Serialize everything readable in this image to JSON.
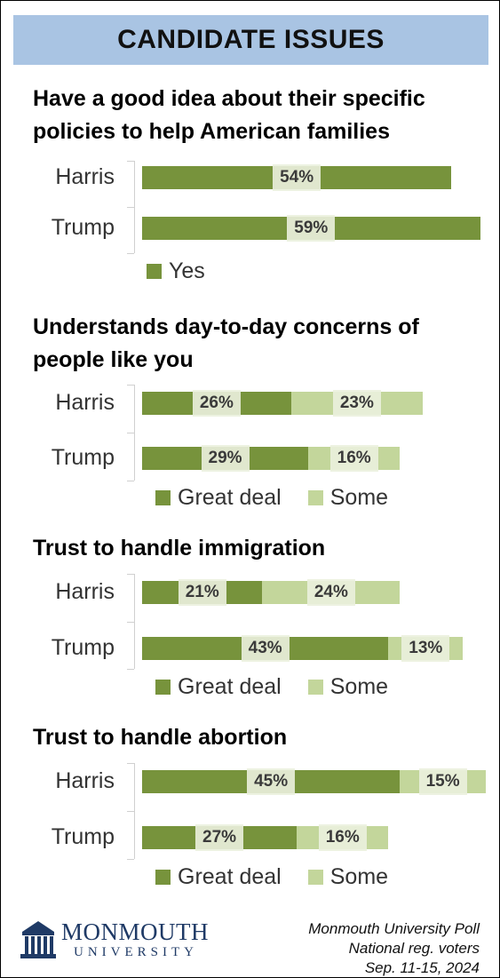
{
  "header": {
    "title": "CANDIDATE ISSUES"
  },
  "footer": {
    "logo_main": "MONMOUTH",
    "logo_sub": "UNIVERSITY",
    "source_line1": "Monmouth University Poll",
    "source_line2": "National reg. voters",
    "source_line3": "Sep. 11-15, 2024"
  },
  "colors": {
    "dark": "#77933c",
    "light": "#c3d69b",
    "header": "#a9c4e3"
  },
  "chart_data": [
    {
      "type": "bar",
      "orientation": "horizontal",
      "stacked": false,
      "title": "Have a good idea about their specific policies to help American families",
      "categories": [
        "Harris",
        "Trump"
      ],
      "series": [
        {
          "name": "Yes",
          "values": [
            54,
            59
          ],
          "labels": [
            "54%",
            "59%"
          ]
        }
      ],
      "unit": "%",
      "legend": [
        "Yes"
      ],
      "legend_position": "bottom"
    },
    {
      "type": "bar",
      "orientation": "horizontal",
      "stacked": true,
      "title": "Understands day-to-day concerns of people like you",
      "categories": [
        "Harris",
        "Trump"
      ],
      "series": [
        {
          "name": "Great deal",
          "values": [
            26,
            29
          ],
          "labels": [
            "26%",
            "29%"
          ]
        },
        {
          "name": "Some",
          "values": [
            23,
            16
          ],
          "labels": [
            "23%",
            "16%"
          ]
        }
      ],
      "unit": "%",
      "legend": [
        "Great deal",
        "Some"
      ],
      "legend_position": "bottom"
    },
    {
      "type": "bar",
      "orientation": "horizontal",
      "stacked": true,
      "title": "Trust to handle immigration",
      "categories": [
        "Harris",
        "Trump"
      ],
      "series": [
        {
          "name": "Great deal",
          "values": [
            21,
            43
          ],
          "labels": [
            "21%",
            "43%"
          ]
        },
        {
          "name": "Some",
          "values": [
            24,
            13
          ],
          "labels": [
            "24%",
            "13%"
          ]
        }
      ],
      "unit": "%",
      "legend": [
        "Great deal",
        "Some"
      ],
      "legend_position": "bottom"
    },
    {
      "type": "bar",
      "orientation": "horizontal",
      "stacked": true,
      "title": "Trust to handle abortion",
      "categories": [
        "Harris",
        "Trump"
      ],
      "series": [
        {
          "name": "Great deal",
          "values": [
            45,
            27
          ],
          "labels": [
            "45%",
            "27%"
          ]
        },
        {
          "name": "Some",
          "values": [
            15,
            16
          ],
          "labels": [
            "15%",
            "16%"
          ]
        }
      ],
      "unit": "%",
      "legend": [
        "Great deal",
        "Some"
      ],
      "legend_position": "bottom"
    }
  ]
}
